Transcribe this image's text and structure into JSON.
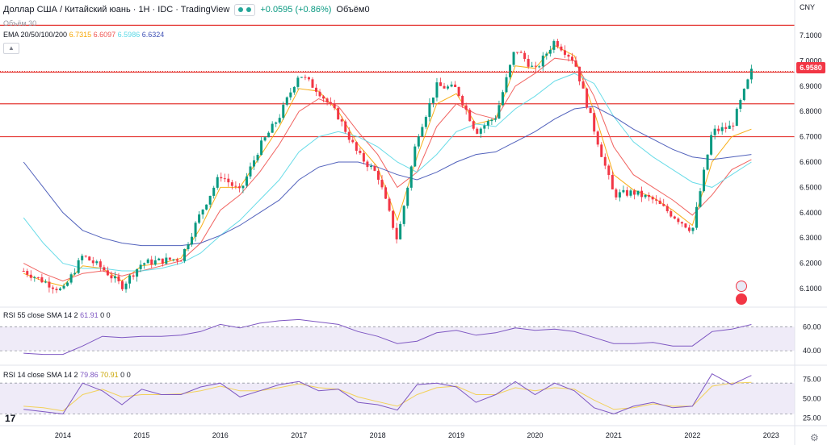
{
  "header": {
    "symbol": "Доллар США / Китайский юань · 1H · IDC · TradingView",
    "change": "+0.0595 (+0.86%)",
    "volume_label": "Объём0"
  },
  "volume_study": "Объём 30",
  "ema": {
    "label": "EMA 20/50/100/200",
    "values": [
      "6.7315",
      "6.6097",
      "6.5986",
      "6.6324"
    ],
    "colors": [
      "#f7a600",
      "#ef5350",
      "#5ad8e6",
      "#3f51b5"
    ]
  },
  "currency": "CNY",
  "last_price": "6.9580",
  "collapse_icon": "chevron-up-icon",
  "rsi1": {
    "label": "RSI 55 close SMA 14 2",
    "v1": "61.91",
    "v2": "0",
    "v3": "0"
  },
  "rsi2": {
    "label": "RSI 14 close SMA 14 2",
    "v1": "79.86",
    "v2": "70.91",
    "v3": "0",
    "v4": "0"
  },
  "logo": "17",
  "colors": {
    "up": "#089981",
    "down": "#f23645",
    "hline": "#e53935",
    "rsi": "#7e57c2",
    "rsi_ma": "#f2d15a",
    "band": "rgba(126,87,194,0.12)"
  },
  "chart_data": {
    "type": "line",
    "title": "Доллар США / Китайский юань · 1H · IDC",
    "x": [
      2013.5,
      2013.75,
      2014.0,
      2014.25,
      2014.5,
      2014.75,
      2015.0,
      2015.25,
      2015.5,
      2015.75,
      2016.0,
      2016.25,
      2016.5,
      2016.75,
      2017.0,
      2017.25,
      2017.5,
      2017.75,
      2018.0,
      2018.25,
      2018.5,
      2018.75,
      2019.0,
      2019.25,
      2019.5,
      2019.75,
      2020.0,
      2020.25,
      2020.5,
      2020.75,
      2021.0,
      2021.25,
      2021.5,
      2021.75,
      2022.0,
      2022.25,
      2022.5,
      2022.75
    ],
    "series": [
      {
        "name": "Price",
        "values": [
          6.17,
          6.13,
          6.09,
          6.23,
          6.18,
          6.11,
          6.2,
          6.21,
          6.22,
          6.4,
          6.55,
          6.48,
          6.66,
          6.78,
          6.95,
          6.88,
          6.78,
          6.63,
          6.55,
          6.29,
          6.7,
          6.9,
          6.89,
          6.72,
          6.78,
          7.05,
          6.96,
          7.08,
          7.0,
          6.73,
          6.47,
          6.48,
          6.45,
          6.39,
          6.33,
          6.72,
          6.74,
          6.958
        ]
      },
      {
        "name": "EMA 20",
        "values": [
          6.16,
          6.13,
          6.11,
          6.19,
          6.18,
          6.13,
          6.19,
          6.2,
          6.22,
          6.34,
          6.5,
          6.5,
          6.62,
          6.74,
          6.89,
          6.88,
          6.8,
          6.67,
          6.58,
          6.37,
          6.62,
          6.83,
          6.87,
          6.75,
          6.77,
          6.98,
          6.97,
          7.06,
          7.02,
          6.8,
          6.55,
          6.49,
          6.46,
          6.41,
          6.35,
          6.6,
          6.7,
          6.73
        ]
      },
      {
        "name": "EMA 50",
        "values": [
          6.2,
          6.16,
          6.13,
          6.16,
          6.17,
          6.15,
          6.17,
          6.19,
          6.21,
          6.28,
          6.41,
          6.47,
          6.56,
          6.67,
          6.8,
          6.85,
          6.82,
          6.72,
          6.63,
          6.5,
          6.56,
          6.74,
          6.83,
          6.79,
          6.77,
          6.9,
          6.95,
          7.01,
          7.0,
          6.86,
          6.66,
          6.55,
          6.5,
          6.45,
          6.39,
          6.47,
          6.57,
          6.61
        ]
      },
      {
        "name": "EMA 100",
        "values": [
          6.38,
          6.28,
          6.2,
          6.18,
          6.18,
          6.17,
          6.17,
          6.18,
          6.2,
          6.24,
          6.31,
          6.37,
          6.45,
          6.53,
          6.64,
          6.7,
          6.72,
          6.7,
          6.66,
          6.6,
          6.56,
          6.63,
          6.72,
          6.75,
          6.74,
          6.81,
          6.86,
          6.92,
          6.95,
          6.91,
          6.78,
          6.68,
          6.62,
          6.57,
          6.52,
          6.5,
          6.55,
          6.6
        ]
      },
      {
        "name": "EMA 200",
        "values": [
          6.6,
          6.5,
          6.4,
          6.33,
          6.3,
          6.28,
          6.27,
          6.27,
          6.27,
          6.28,
          6.31,
          6.35,
          6.4,
          6.45,
          6.53,
          6.58,
          6.6,
          6.6,
          6.58,
          6.55,
          6.53,
          6.56,
          6.6,
          6.63,
          6.64,
          6.68,
          6.72,
          6.77,
          6.81,
          6.82,
          6.78,
          6.73,
          6.69,
          6.65,
          6.62,
          6.61,
          6.62,
          6.63
        ]
      }
    ],
    "hlines": [
      7.14,
      6.955,
      6.83,
      6.7
    ],
    "ylim": [
      6.03,
      7.24
    ],
    "yticks": [
      "7.1000",
      "7.0000",
      "6.9000",
      "6.8000",
      "6.7000",
      "6.6000",
      "6.5000",
      "6.4000",
      "6.3000",
      "6.2000",
      "6.1000"
    ],
    "ytick_values": [
      7.1,
      7.0,
      6.9,
      6.8,
      6.7,
      6.6,
      6.5,
      6.4,
      6.3,
      6.2,
      6.1
    ],
    "xticks": [
      "2014",
      "2015",
      "2016",
      "2017",
      "2018",
      "2019",
      "2020",
      "2021",
      "2022",
      "2023"
    ],
    "xtick_values": [
      2014,
      2015,
      2016,
      2017,
      2018,
      2019,
      2020,
      2021,
      2022,
      2023
    ],
    "xlim": [
      2013.2,
      2023.3
    ],
    "rsi55": {
      "values": [
        38,
        37,
        37,
        44,
        52,
        51,
        52,
        52,
        53,
        56,
        62,
        59,
        63,
        65,
        66,
        64,
        62,
        56,
        52,
        46,
        48,
        55,
        57,
        53,
        55,
        59,
        57,
        58,
        56,
        51,
        46,
        46,
        47,
        44,
        44,
        56,
        58,
        61.91
      ],
      "ylim": [
        30,
        75
      ],
      "yticks": [
        "60.00",
        "40.00"
      ],
      "ytick_values": [
        60,
        40
      ],
      "band": [
        40,
        60
      ]
    },
    "rsi14": {
      "values": [
        36,
        33,
        30,
        70,
        60,
        42,
        62,
        55,
        55,
        65,
        70,
        52,
        60,
        68,
        72,
        60,
        62,
        45,
        42,
        35,
        68,
        70,
        65,
        45,
        55,
        72,
        55,
        70,
        60,
        38,
        30,
        40,
        45,
        38,
        40,
        82,
        68,
        79.86
      ],
      "ma": [
        40,
        38,
        34,
        55,
        62,
        52,
        55,
        55,
        56,
        60,
        66,
        60,
        60,
        64,
        69,
        64,
        62,
        52,
        46,
        40,
        55,
        64,
        66,
        55,
        55,
        64,
        60,
        64,
        62,
        48,
        36,
        38,
        43,
        40,
        40,
        66,
        70,
        70.91
      ],
      "ylim": [
        18,
        90
      ],
      "yticks": [
        "75.00",
        "50.00",
        "25.00"
      ],
      "ytick_values": [
        75,
        50,
        25
      ],
      "band": [
        30,
        70
      ]
    }
  }
}
